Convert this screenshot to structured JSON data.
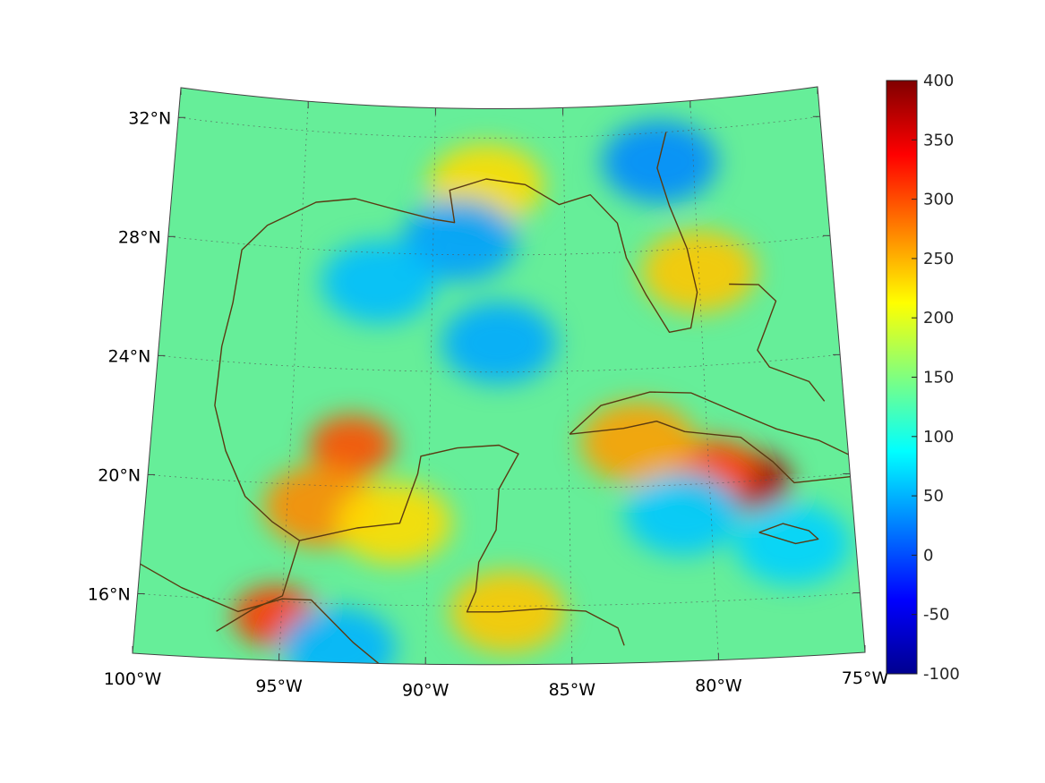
{
  "map": {
    "projection": "lambert conic",
    "lon_range": [
      -100,
      -75
    ],
    "lat_range": [
      14,
      33
    ],
    "lon_ticks": [
      -100,
      -95,
      -90,
      -85,
      -80,
      -75
    ],
    "lat_ticks": [
      16,
      20,
      24,
      28,
      32
    ],
    "lon_tick_labels": [
      "100°W",
      "95°W",
      "90°W",
      "85°W",
      "80°W",
      "75°W"
    ],
    "lat_tick_labels": [
      "16°N",
      "20°N",
      "24°N",
      "28°N",
      "32°N"
    ],
    "grid": true,
    "coastline_color": "#5a3a12",
    "background_field_color": "#66ee99"
  },
  "field": {
    "description": "gridded scalar field on jet colormap",
    "features": [
      {
        "name": "western Gulf high",
        "lon": -92.8,
        "lat": 21.4,
        "value": 300
      },
      {
        "name": "Bay of Campeche high",
        "lon": -93.8,
        "lat": 19.3,
        "value": 270
      },
      {
        "name": "Yucatan north high",
        "lon": -91.2,
        "lat": 18.8,
        "value": 230
      },
      {
        "name": "Haiti peak",
        "lon": -78.6,
        "lat": 20.0,
        "value": 380
      },
      {
        "name": "eastern Cuba high",
        "lon": -79.8,
        "lat": 20.5,
        "value": 300
      },
      {
        "name": "central Cuba high",
        "lon": -82.5,
        "lat": 21.5,
        "value": 260
      },
      {
        "name": "Tehuantepec high",
        "lon": -95.2,
        "lat": 15.5,
        "value": 310
      },
      {
        "name": "Honduras coast high",
        "lon": -87.2,
        "lat": 15.8,
        "value": 240
      },
      {
        "name": "Bahamas high",
        "lon": -80.0,
        "lat": 27.2,
        "value": 240
      },
      {
        "name": "Florida panhandle high",
        "lon": -88.0,
        "lat": 30.4,
        "value": 230
      },
      {
        "name": "north Gulf low",
        "lon": -89.0,
        "lat": 28.5,
        "value": 40
      },
      {
        "name": "central Gulf low",
        "lon": -87.5,
        "lat": 25.0,
        "value": 45
      },
      {
        "name": "western Gulf low",
        "lon": -92.0,
        "lat": 27.0,
        "value": 55
      },
      {
        "name": "Georgia coast low",
        "lon": -81.3,
        "lat": 31.0,
        "value": 30
      },
      {
        "name": "Pacific low",
        "lon": -93.0,
        "lat": 14.5,
        "value": 50
      },
      {
        "name": "south Cuba low",
        "lon": -81.0,
        "lat": 19.0,
        "value": 60
      },
      {
        "name": "Jamaica low",
        "lon": -77.2,
        "lat": 17.8,
        "value": 65
      }
    ]
  },
  "colorbar": {
    "colormap": "jet",
    "min": -100,
    "max": 400,
    "tick_values": [
      400,
      350,
      300,
      250,
      200,
      150,
      100,
      50,
      0,
      -50,
      -100
    ],
    "tick_labels": [
      "400",
      "350",
      "300",
      "250",
      "200",
      "150",
      "100",
      "50",
      "0",
      "-50",
      "-100"
    ]
  }
}
